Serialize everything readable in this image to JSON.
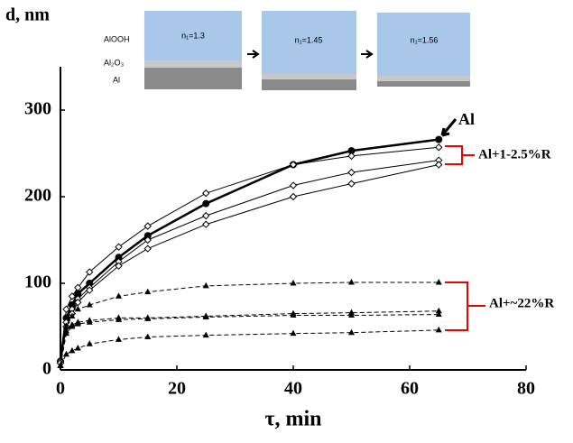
{
  "chart_data": {
    "type": "line",
    "y_label": "d, nm",
    "x_label": "τ, min",
    "annotations": [
      "Al",
      "Al+1-2.5%R",
      "Al+~22%R"
    ],
    "inset": {
      "layers": [
        "AlOOH",
        "Al₂O₃",
        "Al"
      ],
      "indices": [
        "n₁=1.3",
        "n₁=1.45",
        "n₁=1.56"
      ]
    },
    "x": [
      0,
      1,
      2,
      3,
      5,
      10,
      15,
      25,
      40,
      50,
      65
    ],
    "series": [
      {
        "color": "#000000",
        "marker": "circle",
        "dashed": false,
        "width": 2.5,
        "values": [
          10,
          60,
          75,
          88,
          100,
          130,
          155,
          192,
          237,
          253,
          266
        ]
      },
      {
        "color": "#000000",
        "marker": "diamond",
        "dashed": false,
        "width": 1,
        "values": [
          10,
          70,
          85,
          95,
          113,
          142,
          166,
          204,
          237,
          247,
          257
        ]
      },
      {
        "color": "#000000",
        "marker": "diamond",
        "dashed": false,
        "width": 1,
        "values": [
          8,
          55,
          70,
          82,
          95,
          125,
          150,
          178,
          213,
          228,
          242
        ]
      },
      {
        "color": "#000000",
        "marker": "diamond",
        "dashed": false,
        "width": 1,
        "values": [
          8,
          50,
          65,
          78,
          92,
          120,
          140,
          168,
          200,
          215,
          237
        ]
      },
      {
        "color": "#000000",
        "marker": "triangle",
        "dashed": true,
        "width": 1,
        "values": [
          5,
          50,
          62,
          70,
          75,
          85,
          90,
          97,
          100,
          101,
          101
        ]
      },
      {
        "color": "#000000",
        "marker": "triangle",
        "dashed": true,
        "width": 1,
        "values": [
          5,
          45,
          52,
          55,
          57,
          60,
          60,
          62,
          65,
          66,
          68
        ]
      },
      {
        "color": "#000000",
        "marker": "triangle",
        "dashed": true,
        "width": 1,
        "values": [
          5,
          42,
          50,
          53,
          55,
          58,
          59,
          61,
          63,
          63,
          64
        ]
      },
      {
        "color": "#000000",
        "marker": "triangle",
        "dashed": true,
        "width": 1,
        "values": [
          5,
          18,
          22,
          25,
          30,
          35,
          38,
          40,
          42,
          43,
          46
        ]
      }
    ],
    "xlim": [
      0,
      80
    ],
    "xticks": [
      0,
      20,
      40,
      60,
      80
    ],
    "ylim": [
      0,
      350
    ],
    "yticks": [
      0,
      100,
      200,
      300
    ]
  }
}
